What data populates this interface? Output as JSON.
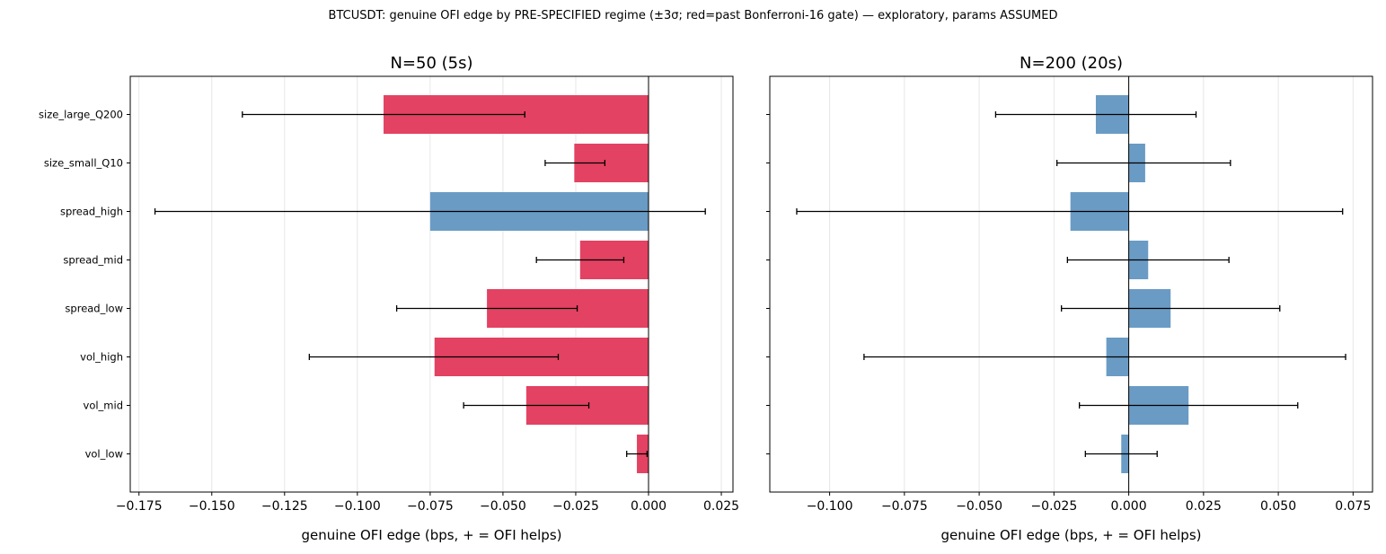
{
  "suptitle": "BTCUSDT: genuine OFI edge by PRE-SPECIFIED regime (±3σ; red=past Bonferroni-16 gate) — exploratory, params ASSUMED",
  "colors": {
    "pass": "#e34262",
    "fail": "#6a9bc4",
    "error": "#000000",
    "grid": "#e6e6e6"
  },
  "chart_data": [
    {
      "type": "bar",
      "orientation": "horizontal",
      "title": "N=50 (5s)",
      "xlabel": "genuine OFI edge (bps,  + = OFI helps)",
      "ylabel": "",
      "xlim": [
        -0.178,
        0.029
      ],
      "xticks": [
        -0.175,
        -0.15,
        -0.125,
        -0.1,
        -0.075,
        -0.05,
        -0.025,
        0.0,
        0.025
      ],
      "xtick_labels": [
        "−0.175",
        "−0.150",
        "−0.125",
        "−0.100",
        "−0.075",
        "−0.050",
        "−0.025",
        "0.000",
        "0.025"
      ],
      "grid": "vertical",
      "categories": [
        "size_large_Q200",
        "size_small_Q10",
        "spread_high",
        "spread_mid",
        "spread_low",
        "vol_high",
        "vol_mid",
        "vol_low"
      ],
      "values": [
        -0.091,
        -0.0255,
        -0.075,
        -0.0235,
        -0.0555,
        -0.0735,
        -0.042,
        -0.004
      ],
      "err_low": [
        -0.1395,
        -0.0355,
        -0.1695,
        -0.0385,
        -0.0865,
        -0.1165,
        -0.0635,
        -0.0075
      ],
      "err_high": [
        -0.0425,
        -0.015,
        0.0195,
        -0.0085,
        -0.0245,
        -0.031,
        -0.0205,
        -0.0005
      ],
      "passed_gate": [
        true,
        true,
        false,
        true,
        true,
        true,
        true,
        true
      ]
    },
    {
      "type": "bar",
      "orientation": "horizontal",
      "title": "N=200 (20s)",
      "xlabel": "genuine OFI edge (bps,  + = OFI helps)",
      "ylabel": "",
      "xlim": [
        -0.12,
        0.0815
      ],
      "xticks": [
        -0.1,
        -0.075,
        -0.05,
        -0.025,
        0.0,
        0.025,
        0.05,
        0.075
      ],
      "xtick_labels": [
        "−0.100",
        "−0.075",
        "−0.050",
        "−0.025",
        "0.000",
        "0.025",
        "0.050",
        "0.075"
      ],
      "grid": "vertical",
      "categories": [
        "size_large_Q200",
        "size_small_Q10",
        "spread_high",
        "spread_mid",
        "spread_low",
        "vol_high",
        "vol_mid",
        "vol_low"
      ],
      "values": [
        -0.011,
        0.0055,
        -0.0195,
        0.0065,
        0.014,
        -0.0075,
        0.02,
        -0.0025
      ],
      "err_low": [
        -0.0445,
        -0.024,
        -0.111,
        -0.0205,
        -0.0225,
        -0.0885,
        -0.0165,
        -0.0145
      ],
      "err_high": [
        0.0225,
        0.034,
        0.0715,
        0.0335,
        0.0505,
        0.0725,
        0.0565,
        0.0095
      ],
      "passed_gate": [
        false,
        false,
        false,
        false,
        false,
        false,
        false,
        false
      ]
    }
  ]
}
